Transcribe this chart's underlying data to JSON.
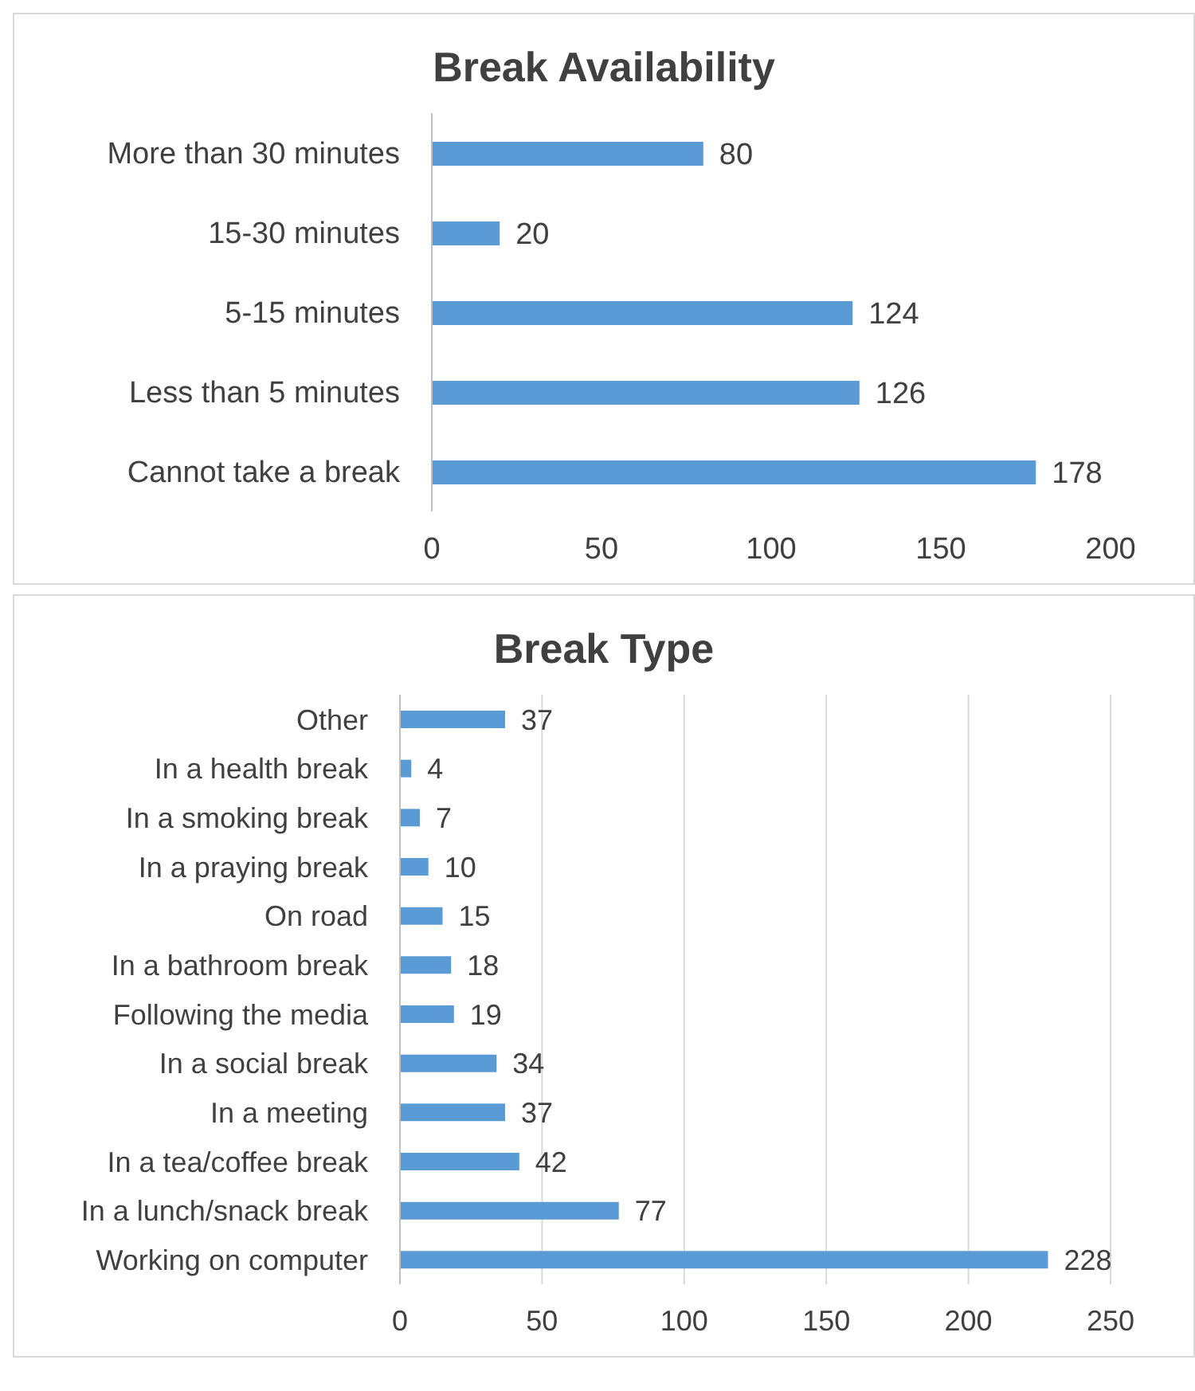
{
  "chart_data": [
    {
      "type": "bar",
      "orientation": "horizontal",
      "title": "Break Availability",
      "categories": [
        "More than 30 minutes",
        "15-30 minutes",
        "5-15 minutes",
        "Less than 5 minutes",
        "Cannot take a break"
      ],
      "values": [
        80,
        20,
        124,
        126,
        178
      ],
      "color": "#5b9bd5",
      "xlim": [
        0,
        200
      ],
      "xticks": [
        0,
        50,
        100,
        150,
        200
      ],
      "grid": false,
      "data_labels": true
    },
    {
      "type": "bar",
      "orientation": "horizontal",
      "title": "Break Type",
      "categories": [
        "Other",
        "In a health break",
        "In a smoking break",
        "In a praying break",
        "On road",
        "In a bathroom break",
        "Following the media",
        "In a social break",
        "In a meeting",
        "In a tea/coffee break",
        "In a lunch/snack break",
        "Working on computer"
      ],
      "values": [
        37,
        4,
        7,
        10,
        15,
        18,
        19,
        34,
        37,
        42,
        77,
        228
      ],
      "color": "#5b9bd5",
      "xlim": [
        0,
        250
      ],
      "xticks": [
        0,
        50,
        100,
        150,
        200,
        250
      ],
      "grid": "x",
      "data_labels": true
    }
  ]
}
